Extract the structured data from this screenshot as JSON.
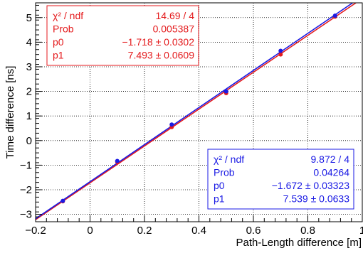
{
  "chart_data": {
    "type": "scatter",
    "xlabel": "Path-Length difference [m]",
    "ylabel": "Time difference [ns]",
    "xlim": [
      -0.2,
      1.0
    ],
    "ylim": [
      -3.3,
      5.6
    ],
    "x_ticks": [
      -0.2,
      0,
      0.2,
      0.4,
      0.6,
      0.8,
      1
    ],
    "x_tick_labels": [
      "−0.2",
      "0",
      "0.2",
      "0.4",
      "0.6",
      "0.8",
      "1"
    ],
    "y_ticks": [
      -3,
      -2,
      -1,
      0,
      1,
      2,
      3,
      4,
      5
    ],
    "y_tick_labels": [
      "−3",
      "−2",
      "−1",
      "0",
      "1",
      "2",
      "3",
      "4",
      "5"
    ],
    "grid": true,
    "series": [
      {
        "color": "#e41a1c",
        "x": [
          -0.1,
          0.1,
          0.3,
          0.5,
          0.7,
          0.9
        ],
        "y": [
          -2.47,
          -0.87,
          0.55,
          1.93,
          3.5,
          5.04
        ],
        "fit": {
          "p0": -1.718,
          "p1": 7.493
        }
      },
      {
        "color": "#1a1ae4",
        "x": [
          -0.1,
          0.1,
          0.3,
          0.5,
          0.7,
          0.9
        ],
        "y": [
          -2.45,
          -0.83,
          0.65,
          2.0,
          3.65,
          5.08
        ],
        "fit": {
          "p0": -1.672,
          "p1": 7.539
        }
      }
    ],
    "stat_boxes": [
      {
        "color": "#e41a1c",
        "position": "top-left",
        "rows": [
          {
            "label": "χ² / ndf",
            "value": "14.69 / 4"
          },
          {
            "label": "Prob",
            "value": "0.005387"
          },
          {
            "label": "p0",
            "value": "−1.718 ± 0.0302"
          },
          {
            "label": "p1",
            "value": "7.493 ± 0.0609"
          }
        ]
      },
      {
        "color": "#1a1ae4",
        "position": "bottom-right",
        "rows": [
          {
            "label": "χ² / ndf",
            "value": "9.872 / 4"
          },
          {
            "label": "Prob",
            "value": "0.04264"
          },
          {
            "label": "p0",
            "value": "−1.672 ± 0.03323"
          },
          {
            "label": "p1",
            "value": "7.539 ± 0.0633"
          }
        ]
      }
    ]
  }
}
